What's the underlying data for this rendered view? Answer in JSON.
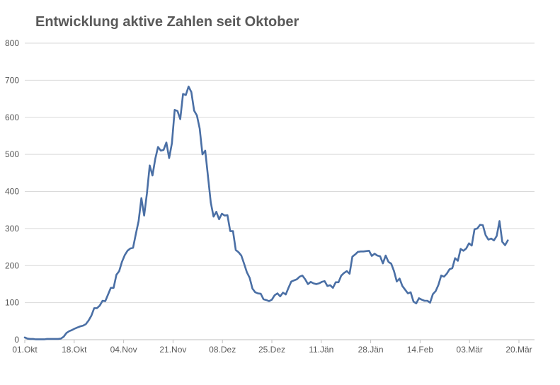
{
  "chart_data": {
    "type": "line",
    "title": "Entwicklung aktive Zahlen seit Oktober",
    "xlabel": "",
    "ylabel": "",
    "ylim": [
      0,
      800
    ],
    "yticks": [
      0,
      100,
      200,
      300,
      400,
      500,
      600,
      700,
      800
    ],
    "xtick_labels": [
      "01.Okt",
      "18.Okt",
      "04.Nov",
      "21.Nov",
      "08.Dez",
      "25.Dez",
      "11.Jän",
      "28.Jän",
      "14.Feb",
      "03.Mär",
      "20.Mär"
    ],
    "xlim_days": [
      0,
      178
    ],
    "grid": "horizontal",
    "legend": "none",
    "line_color": "#4a6fa5",
    "series": [
      {
        "values": [
          6,
          3,
          2,
          2,
          1,
          1,
          1,
          1,
          2,
          2,
          2,
          2,
          2,
          3,
          8,
          18,
          23,
          26,
          30,
          33,
          36,
          38,
          42,
          52,
          65,
          85,
          85,
          92,
          105,
          104,
          122,
          140,
          140,
          175,
          185,
          210,
          228,
          240,
          246,
          248,
          285,
          320,
          382,
          335,
          395,
          470,
          443,
          488,
          520,
          510,
          512,
          532,
          490,
          530,
          620,
          617,
          595,
          663,
          660,
          683,
          668,
          618,
          605,
          570,
          500,
          510,
          440,
          370,
          332,
          345,
          325,
          340,
          335,
          336,
          293,
          293,
          242,
          236,
          227,
          205,
          182,
          167,
          138,
          128,
          125,
          124,
          109,
          107,
          104,
          108,
          120,
          125,
          117,
          127,
          122,
          140,
          157,
          160,
          163,
          170,
          173,
          163,
          150,
          156,
          152,
          150,
          152,
          156,
          158,
          145,
          147,
          140,
          155,
          155,
          173,
          180,
          185,
          178,
          224,
          230,
          237,
          238,
          238,
          239,
          240,
          226,
          232,
          227,
          225,
          206,
          227,
          210,
          205,
          185,
          157,
          165,
          145,
          135,
          125,
          128,
          103,
          98,
          112,
          108,
          105,
          105,
          100,
          123,
          131,
          148,
          173,
          170,
          178,
          190,
          193,
          220,
          213,
          245,
          240,
          246,
          260,
          254,
          298,
          300,
          310,
          309,
          282,
          270,
          273,
          268,
          280,
          320,
          264,
          255,
          268
        ]
      }
    ]
  }
}
